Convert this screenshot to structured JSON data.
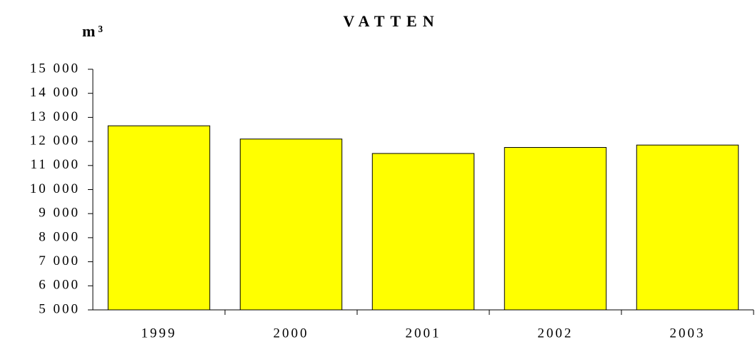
{
  "chart_data": {
    "type": "bar",
    "title": "VATTEN",
    "y_label": "m³",
    "categories": [
      "1999",
      "2000",
      "2001",
      "2002",
      "2003"
    ],
    "values": [
      12650,
      12100,
      11500,
      11750,
      11850
    ],
    "color": "#ffff00",
    "ylim": [
      5000,
      15000
    ],
    "yticks": [
      {
        "value": 5000,
        "label": "5 000"
      },
      {
        "value": 6000,
        "label": "6 000"
      },
      {
        "value": 7000,
        "label": "7 000"
      },
      {
        "value": 8000,
        "label": "8 000"
      },
      {
        "value": 9000,
        "label": "9 000"
      },
      {
        "value": 10000,
        "label": "10 000"
      },
      {
        "value": 11000,
        "label": "11 000"
      },
      {
        "value": 12000,
        "label": "12 000"
      },
      {
        "value": 13000,
        "label": "13 000"
      },
      {
        "value": 14000,
        "label": "14 000"
      },
      {
        "value": 15000,
        "label": "15 000"
      }
    ],
    "grid": false
  }
}
